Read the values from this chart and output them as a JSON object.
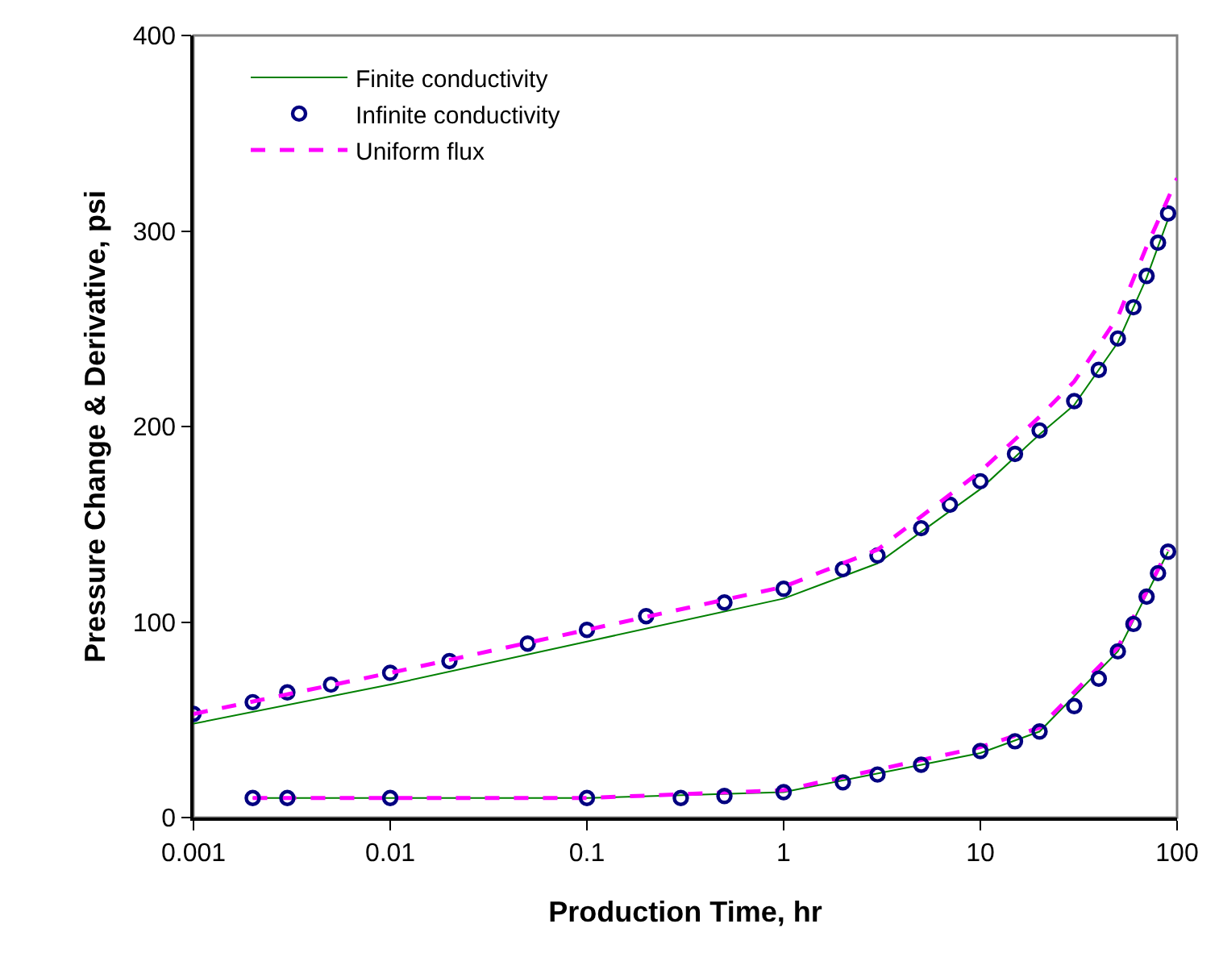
{
  "chart_data": {
    "type": "line",
    "xlabel": "Production Time, hr",
    "ylabel": "Pressure Change & Derivative, psi",
    "log": "x",
    "xlim": [
      0.001,
      100
    ],
    "xticks": [
      0.001,
      0.01,
      0.1,
      1,
      10,
      100
    ],
    "ylim": [
      0,
      400
    ],
    "yticks": [
      0,
      100,
      200,
      300,
      400
    ],
    "grid": false,
    "legend": "top left",
    "series": [
      {
        "name": "Finite conductivity",
        "color": "#008000",
        "line_style": "solid",
        "marker": "none",
        "x": [
          0.001,
          0.01,
          0.1,
          1,
          3,
          10,
          20,
          30,
          50,
          70,
          90
        ],
        "values": [
          48,
          68,
          90,
          112,
          130,
          168,
          196,
          211,
          243,
          276,
          306
        ]
      },
      {
        "name": "Infinite conductivity",
        "type": "scatter",
        "color": "#000080",
        "marker": "circle",
        "x": [
          0.001,
          0.002,
          0.003,
          0.005,
          0.01,
          0.02,
          0.05,
          0.1,
          0.2,
          0.5,
          1,
          2,
          3,
          5,
          7,
          10,
          15,
          20,
          30,
          40,
          50,
          60,
          70,
          80,
          90
        ],
        "values": [
          53,
          59,
          64,
          68,
          74,
          80,
          89,
          96,
          103,
          110,
          117,
          127,
          134,
          148,
          160,
          172,
          186,
          198,
          213,
          229,
          245,
          261,
          277,
          294,
          309
        ]
      },
      {
        "name": "Uniform flux",
        "color": "#ff00ff",
        "line_style": "dashed",
        "marker": "none",
        "x": [
          0.001,
          0.01,
          0.1,
          1,
          3,
          10,
          20,
          30,
          50,
          70,
          100
        ],
        "values": [
          53,
          74,
          96,
          118,
          137,
          177,
          205,
          223,
          256,
          292,
          327
        ]
      },
      {
        "color": "#008000",
        "line_style": "solid",
        "marker": "none",
        "x": [
          0.002,
          0.1,
          1,
          10,
          20,
          50,
          90
        ],
        "values": [
          10,
          10,
          13,
          33,
          44,
          85,
          136
        ]
      },
      {
        "color": "#ff00ff",
        "line_style": "dashed",
        "marker": "none",
        "x": [
          0.002,
          0.1,
          1,
          10,
          20,
          50,
          90
        ],
        "values": [
          10,
          10,
          14,
          36,
          46,
          87,
          137
        ]
      },
      {
        "type": "scatter",
        "color": "#000080",
        "marker": "circle",
        "x": [
          0.002,
          0.003,
          0.01,
          0.1,
          0.3,
          0.5,
          1,
          2,
          3,
          5,
          10,
          15,
          20,
          30,
          40,
          50,
          60,
          70,
          80,
          90
        ],
        "values": [
          10,
          10,
          10,
          10,
          10,
          11,
          13,
          18,
          22,
          27,
          34,
          39,
          44,
          57,
          71,
          85,
          99,
          113,
          125,
          136
        ]
      }
    ]
  }
}
